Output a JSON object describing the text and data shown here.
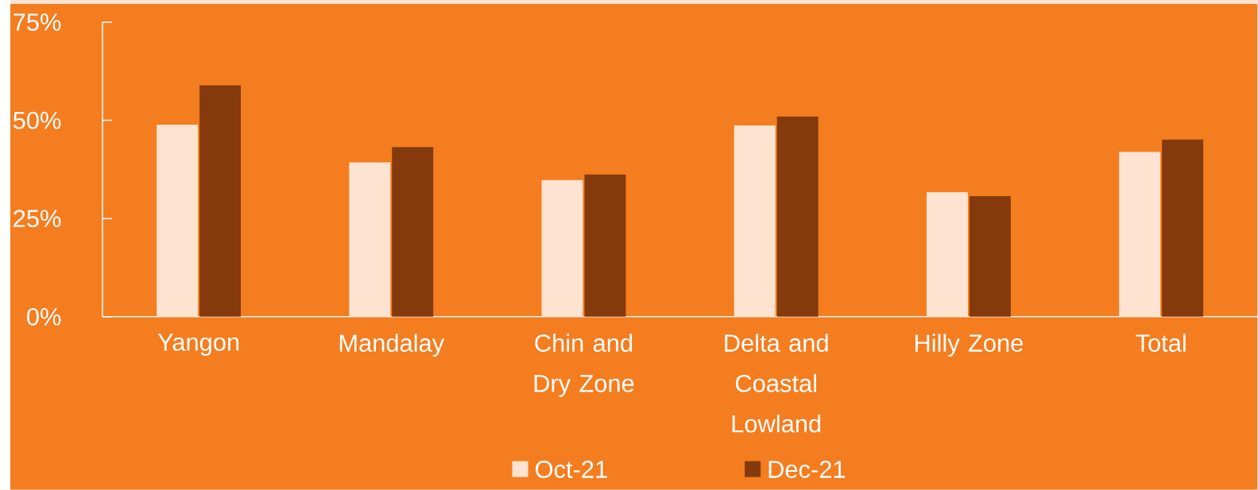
{
  "chart_data": {
    "type": "bar",
    "categories": [
      "Yangon",
      "Mandalay",
      "Chin and Dry Zone",
      "Delta and Coastal Lowland",
      "Hilly Zone",
      "Total"
    ],
    "series": [
      {
        "name": "Oct-21",
        "color": "#fde3d0",
        "values": [
          48.9,
          39.3,
          34.8,
          48.7,
          31.7,
          42.0
        ]
      },
      {
        "name": "Dec-21",
        "color": "#843a0c",
        "values": [
          58.9,
          43.2,
          36.2,
          51.0,
          30.7,
          45.1
        ]
      }
    ],
    "ylim": [
      0,
      75
    ],
    "yticks": [
      {
        "value": 0,
        "label": "0%"
      },
      {
        "value": 25,
        "label": "25%"
      },
      {
        "value": 50,
        "label": "50%"
      },
      {
        "value": 75,
        "label": "75%"
      }
    ],
    "grid": false,
    "legend": "bottom"
  }
}
